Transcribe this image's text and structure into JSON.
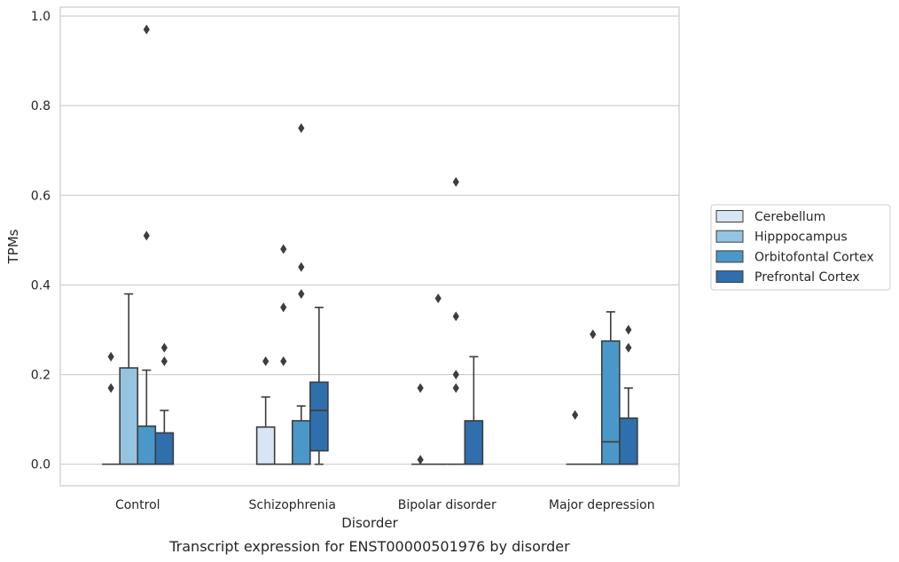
{
  "chart_data": {
    "type": "boxplot",
    "title": "Transcript expression for ENST00000501976 by disorder",
    "xlabel": "Disorder",
    "ylabel": "TPMs",
    "ylim": [
      -0.048,
      1.02
    ],
    "yticks": [
      "0.0",
      "0.2",
      "0.4",
      "0.6",
      "0.8",
      "1.0"
    ],
    "ytick_values": [
      0,
      0.2,
      0.4,
      0.6,
      0.8,
      1.0
    ],
    "grid": true,
    "legend_position": "right",
    "categories": [
      "Control",
      "Schizophrenia",
      "Bipolar disorder",
      "Major depression"
    ],
    "series": [
      {
        "name": "Cerebellum",
        "color": "#d6e6f4",
        "boxes": [
          {
            "q1": 0,
            "median": 0,
            "q3": 0,
            "whislo": 0,
            "whishi": 0,
            "fliers": [
              0.17,
              0.24
            ]
          },
          {
            "q1": 0,
            "median": 0,
            "q3": 0.083,
            "whislo": 0,
            "whishi": 0.15,
            "fliers": [
              0.23
            ]
          },
          {
            "q1": 0,
            "median": 0,
            "q3": 0,
            "whislo": 0,
            "whishi": 0,
            "fliers": [
              0.01,
              0.17
            ]
          },
          {
            "q1": 0,
            "median": 0,
            "q3": 0,
            "whislo": 0,
            "whishi": 0,
            "fliers": [
              0.11
            ]
          }
        ]
      },
      {
        "name": "Hipppocampus",
        "color": "#94c4df",
        "boxes": [
          {
            "q1": 0,
            "median": 0,
            "q3": 0.215,
            "whislo": 0,
            "whishi": 0.38,
            "fliers": []
          },
          {
            "q1": 0,
            "median": 0,
            "q3": 0,
            "whislo": 0,
            "whishi": 0,
            "fliers": [
              0.23,
              0.35,
              0.48
            ]
          },
          {
            "q1": 0,
            "median": 0,
            "q3": 0,
            "whislo": 0,
            "whishi": 0,
            "fliers": [
              0.37
            ]
          },
          {
            "q1": 0,
            "median": 0,
            "q3": 0,
            "whislo": 0,
            "whishi": 0,
            "fliers": [
              0.29
            ]
          }
        ]
      },
      {
        "name": "Orbitofontal Cortex",
        "color": "#4a98c9",
        "boxes": [
          {
            "q1": 0,
            "median": 0,
            "q3": 0.085,
            "whislo": 0,
            "whishi": 0.21,
            "fliers": [
              0.51,
              0.97
            ]
          },
          {
            "q1": 0,
            "median": 0,
            "q3": 0.097,
            "whislo": 0,
            "whishi": 0.13,
            "fliers": [
              0.38,
              0.44,
              0.75
            ]
          },
          {
            "q1": 0,
            "median": 0,
            "q3": 0,
            "whislo": 0,
            "whishi": 0,
            "fliers": [
              0.17,
              0.2,
              0.33,
              0.63
            ]
          },
          {
            "q1": 0,
            "median": 0.05,
            "q3": 0.275,
            "whislo": 0,
            "whishi": 0.34,
            "fliers": []
          }
        ]
      },
      {
        "name": "Prefrontal Cortex",
        "color": "#2f6fad",
        "boxes": [
          {
            "q1": 0,
            "median": 0,
            "q3": 0.07,
            "whislo": 0,
            "whishi": 0.12,
            "fliers": [
              0.23,
              0.26
            ]
          },
          {
            "q1": 0.03,
            "median": 0.12,
            "q3": 0.183,
            "whislo": 0,
            "whishi": 0.35,
            "fliers": []
          },
          {
            "q1": 0,
            "median": 0,
            "q3": 0.097,
            "whislo": 0,
            "whishi": 0.24,
            "fliers": []
          },
          {
            "q1": 0,
            "median": 0,
            "q3": 0.103,
            "whislo": 0,
            "whishi": 0.17,
            "fliers": [
              0.26,
              0.3
            ]
          }
        ]
      }
    ]
  }
}
